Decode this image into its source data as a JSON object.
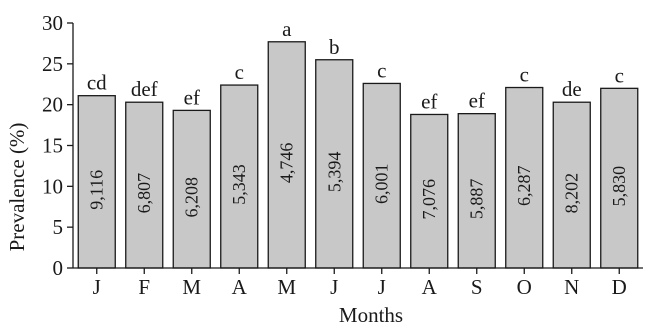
{
  "chart_data": {
    "type": "bar",
    "title": "",
    "xlabel": "Months",
    "ylabel": "Prevalence (%)",
    "ylim": [
      0,
      30
    ],
    "yticks": [
      0,
      5,
      10,
      15,
      20,
      25,
      30
    ],
    "grid": false,
    "legend": "none",
    "categories": [
      "J",
      "F",
      "M",
      "A",
      "M",
      "J",
      "J",
      "A",
      "S",
      "O",
      "N",
      "D"
    ],
    "values": [
      21.1,
      20.3,
      19.3,
      22.4,
      27.7,
      25.5,
      22.6,
      18.8,
      18.9,
      22.1,
      20.3,
      22.0
    ],
    "significance_letters": [
      "cd",
      "def",
      "ef",
      "c",
      "a",
      "b",
      "c",
      "ef",
      "ef",
      "c",
      "de",
      "c"
    ],
    "sample_counts": [
      "9,116",
      "6,807",
      "6,208",
      "5,343",
      "4,746",
      "5,394",
      "6,001",
      "7,076",
      "5,887",
      "6,287",
      "8,202",
      "5,830"
    ],
    "colors": {
      "bar_fill": "#c8c8c8",
      "bar_stroke": "#1a1a1a",
      "axis": "#1a1a1a",
      "text": "#1a1a1a"
    }
  }
}
